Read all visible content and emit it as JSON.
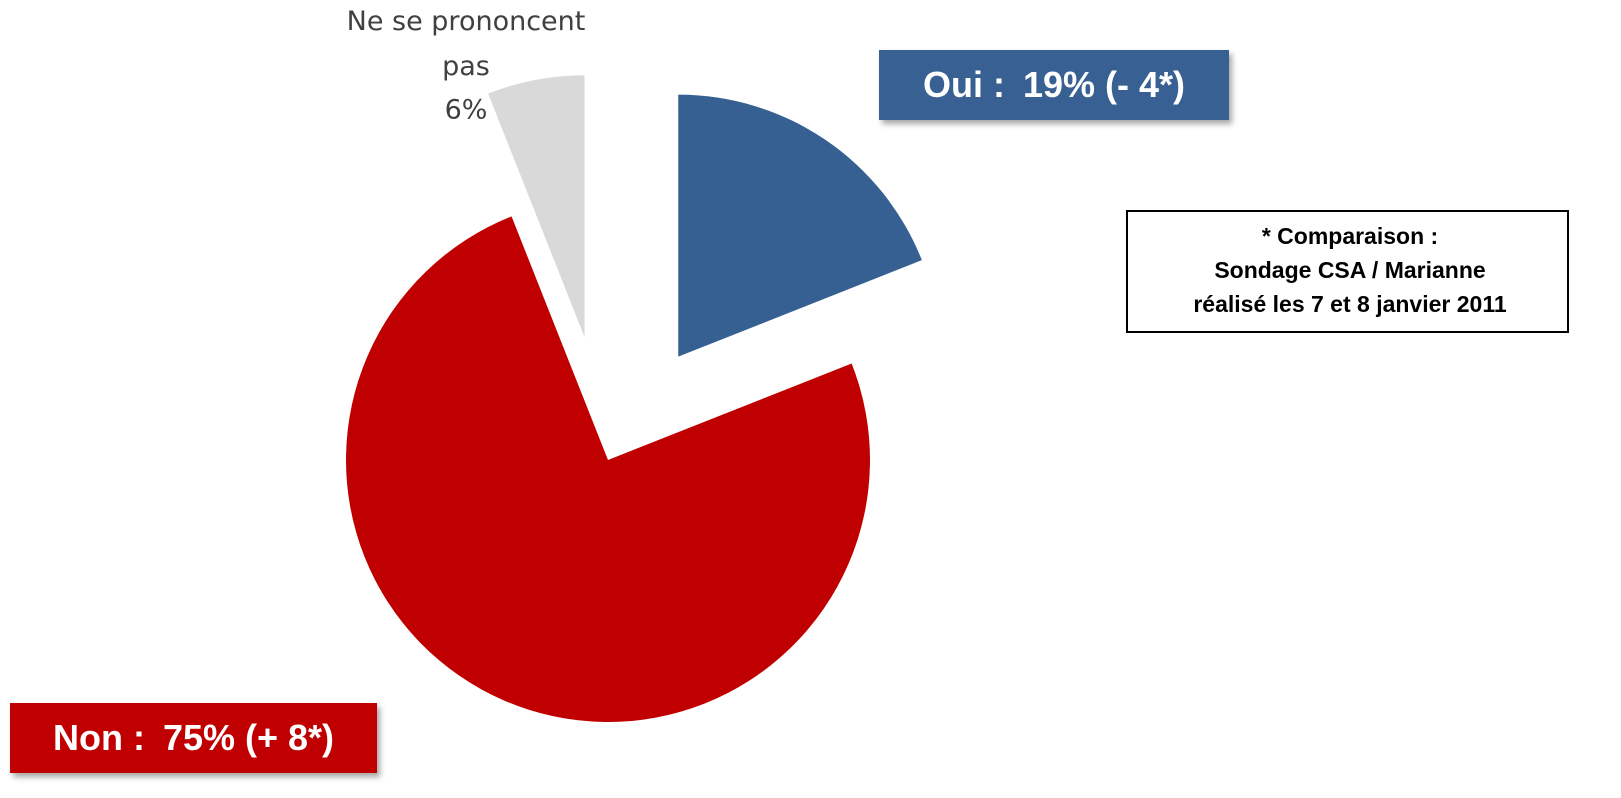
{
  "chart_data": {
    "type": "pie",
    "categories": [
      "Oui :",
      "Non :",
      "Ne se prononcent pas"
    ],
    "values": [
      19,
      75,
      6
    ],
    "value_labels": [
      "19% (- 4*)",
      "75% (+ 8*)",
      "6%"
    ],
    "colors": [
      "#376092",
      "#c00000",
      "#d9d9d9"
    ],
    "exploded": [
      true,
      false,
      true
    ],
    "note": [
      "* Comparaison :",
      "Sondage CSA / Marianne",
      "réalisé les 7 et 8 janvier 2011"
    ]
  }
}
